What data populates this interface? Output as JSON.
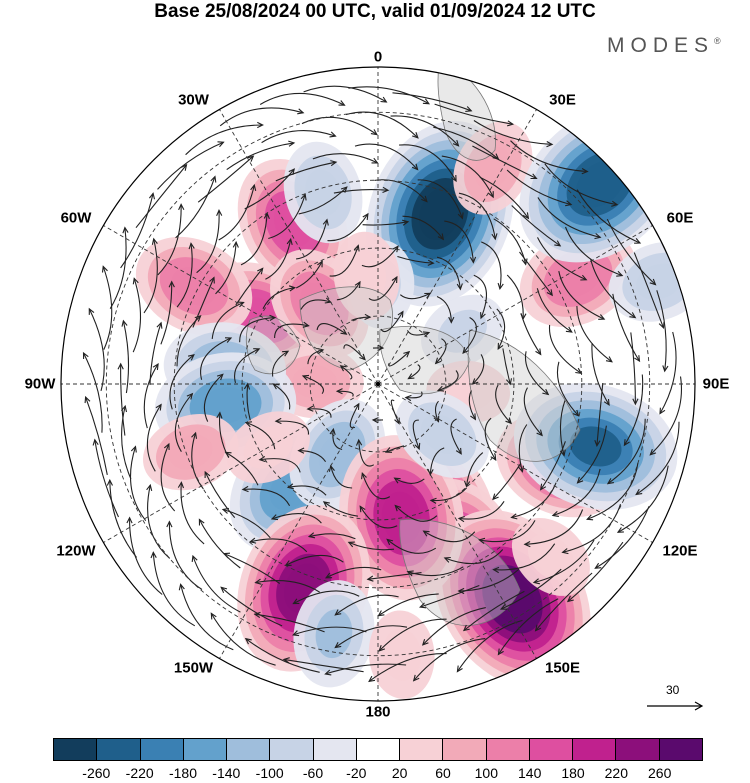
{
  "title": "Base 25/08/2024 00 UTC, valid 01/09/2024 12 UTC",
  "brand": "MODES",
  "brand_mark": "®",
  "longitude_labels": [
    "0",
    "30E",
    "60E",
    "90E",
    "120E",
    "150E",
    "180",
    "150W",
    "120W",
    "90W",
    "60W",
    "30W"
  ],
  "reference_vector": {
    "value": "30"
  },
  "colorbar": {
    "colors": [
      "#123d5c",
      "#1f5f8b",
      "#3a80b3",
      "#63a1cc",
      "#9fbedc",
      "#c7d3e6",
      "#e4e6f0",
      "#ffffff",
      "#f7d1d6",
      "#f2aab8",
      "#ec7fa9",
      "#de4fa0",
      "#c0218e",
      "#8c0f7b",
      "#5a0a6d"
    ],
    "tick_labels": [
      "-260",
      "-220",
      "-180",
      "-140",
      "-100",
      "-60",
      "-20",
      "20",
      "60",
      "100",
      "140",
      "180",
      "220",
      "260"
    ]
  },
  "anomaly_centers": [
    {
      "lon": 20,
      "lat": 50,
      "value": -270
    },
    {
      "lon": 157,
      "lat": 59,
      "value": 210
    },
    {
      "lon": 152,
      "lat": 50,
      "value": 160
    },
    {
      "lon": 114,
      "lat": 46,
      "value": 150
    },
    {
      "lon": 28,
      "lat": 36,
      "value": 80
    },
    {
      "lon": 62,
      "lat": 40,
      "value": 130
    },
    {
      "lon": 48,
      "lat": 24,
      "value": -250
    },
    {
      "lon": 106,
      "lat": 40,
      "value": -220
    },
    {
      "lon": 148,
      "lat": 34,
      "value": 270
    },
    {
      "lon": -60,
      "lat": 60,
      "value": 150
    },
    {
      "lon": -28,
      "lat": 50,
      "value": 160
    },
    {
      "lon": -62,
      "lat": 44,
      "value": 130
    },
    {
      "lon": -36,
      "lat": 68,
      "value": 120
    },
    {
      "lon": -88,
      "lat": 76,
      "value": 80
    },
    {
      "lon": -84,
      "lat": 56,
      "value": -130
    },
    {
      "lon": -98,
      "lat": 56,
      "value": -170
    },
    {
      "lon": -140,
      "lat": 60,
      "value": -170
    },
    {
      "lon": -150,
      "lat": 72,
      "value": -120
    },
    {
      "lon": 170,
      "lat": 60,
      "value": 220
    },
    {
      "lon": -160,
      "lat": 42,
      "value": 230
    },
    {
      "lon": -170,
      "lat": 34,
      "value": -100
    },
    {
      "lon": 2,
      "lat": 68,
      "value": -60
    },
    {
      "lon": -6,
      "lat": 66,
      "value": 60
    },
    {
      "lon": -16,
      "lat": 46,
      "value": -90
    },
    {
      "lon": 58,
      "lat": 68,
      "value": -60
    },
    {
      "lon": 70,
      "lat": 24,
      "value": -90
    },
    {
      "lon": 95,
      "lat": 70,
      "value": 50
    },
    {
      "lon": 128,
      "lat": 72,
      "value": -90
    },
    {
      "lon": 175,
      "lat": 30,
      "value": 60
    },
    {
      "lon": -120,
      "lat": 62,
      "value": 60
    },
    {
      "lon": -110,
      "lat": 46,
      "value": 80
    },
    {
      "lon": 135,
      "lat": 36,
      "value": 60
    }
  ]
}
